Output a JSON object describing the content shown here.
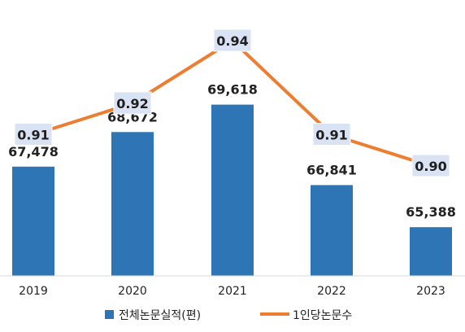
{
  "chart_data": {
    "type": "bar",
    "categories": [
      "2019",
      "2020",
      "2021",
      "2022",
      "2023"
    ],
    "series": [
      {
        "name": "전체논문실적(편)",
        "type": "bar",
        "values": [
          67478,
          68672,
          69618,
          66841,
          65388
        ],
        "labels": [
          "67,478",
          "68,672",
          "69,618",
          "66,841",
          "65,388"
        ],
        "color": "#2e75b6"
      },
      {
        "name": "1인당논문수",
        "type": "line",
        "values": [
          0.91,
          0.92,
          0.94,
          0.91,
          0.9
        ],
        "labels": [
          "0.91",
          "0.92",
          "0.94",
          "0.91",
          "0.90"
        ],
        "color": "#ed7d31"
      }
    ],
    "xlabel": "",
    "ylabel": "",
    "grid": false,
    "legend_position": "bottom",
    "label_box_color": "#dae3f3"
  }
}
